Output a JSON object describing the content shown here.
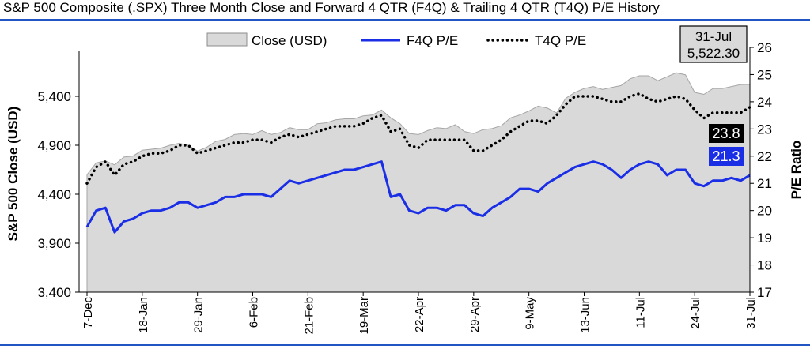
{
  "chart_data": {
    "type": "line",
    "title": "S&P 500 Composite (.SPX) Three Month Close and Forward 4 QTR (F4Q) & Trailing 4 QTR (T4Q) P/E History",
    "ylabel_left": "S&P 500 Close (USD)",
    "ylabel_right": "P/E Ratio",
    "ylim_left": [
      3400,
      5900
    ],
    "ylim_right": [
      17,
      26
    ],
    "yticks_left": [
      "3,400",
      "3,900",
      "4,400",
      "4,900",
      "5,400"
    ],
    "yticks_right": [
      "17",
      "18",
      "19",
      "20",
      "21",
      "22",
      "23",
      "24",
      "25",
      "26"
    ],
    "x_tick_labels": [
      "7-Dec",
      "18-Jan",
      "29-Jan",
      "6-Feb",
      "21-Feb",
      "19-Mar",
      "22-Apr",
      "29-Apr",
      "9-May",
      "13-Jun",
      "11-Jul",
      "24-Jul",
      "31-Jul"
    ],
    "x_tick_index": [
      0,
      6,
      12,
      18,
      24,
      30,
      36,
      42,
      48,
      54,
      60,
      66,
      72
    ],
    "legend_position": "top",
    "series": [
      {
        "name": "Close (USD)",
        "kind": "area",
        "axis": "left",
        "color": "#d9d9d9",
        "values": [
          4600,
          4720,
          4740,
          4700,
          4780,
          4790,
          4850,
          4860,
          4870,
          4900,
          4920,
          4900,
          4840,
          4880,
          4940,
          4960,
          5010,
          5020,
          5010,
          5050,
          5010,
          5030,
          5080,
          5060,
          5060,
          5120,
          5130,
          5160,
          5170,
          5170,
          5200,
          5210,
          5260,
          5180,
          5120,
          5020,
          5010,
          5050,
          5080,
          5070,
          5110,
          5040,
          5020,
          5060,
          5070,
          5100,
          5180,
          5210,
          5250,
          5300,
          5280,
          5230,
          5380,
          5440,
          5480,
          5500,
          5470,
          5490,
          5510,
          5580,
          5610,
          5610,
          5560,
          5600,
          5640,
          5620,
          5440,
          5420,
          5480,
          5480,
          5500,
          5520,
          5522
        ]
      },
      {
        "name": "F4Q P/E",
        "kind": "line",
        "axis": "right",
        "color": "#1a2ee6",
        "values": [
          19.4,
          20.0,
          20.1,
          19.2,
          19.6,
          19.7,
          19.9,
          20.0,
          20.0,
          20.1,
          20.3,
          20.3,
          20.1,
          20.2,
          20.3,
          20.5,
          20.5,
          20.6,
          20.6,
          20.6,
          20.5,
          20.8,
          21.1,
          21.0,
          21.1,
          21.2,
          21.3,
          21.4,
          21.5,
          21.5,
          21.6,
          21.7,
          21.8,
          20.5,
          20.6,
          20.0,
          19.9,
          20.1,
          20.1,
          20.0,
          20.2,
          20.2,
          19.9,
          19.8,
          20.1,
          20.3,
          20.5,
          20.8,
          20.8,
          20.7,
          21.0,
          21.2,
          21.4,
          21.6,
          21.7,
          21.8,
          21.7,
          21.5,
          21.2,
          21.5,
          21.7,
          21.8,
          21.7,
          21.3,
          21.5,
          21.5,
          21.0,
          20.9,
          21.1,
          21.1,
          21.2,
          21.1,
          21.3
        ]
      },
      {
        "name": "T4Q P/E",
        "kind": "dotted",
        "axis": "right",
        "color": "#000000",
        "values": [
          21.0,
          21.6,
          21.8,
          21.3,
          21.7,
          21.8,
          22.0,
          22.1,
          22.1,
          22.2,
          22.4,
          22.4,
          22.1,
          22.2,
          22.3,
          22.4,
          22.5,
          22.5,
          22.6,
          22.6,
          22.5,
          22.7,
          22.8,
          22.7,
          22.8,
          22.9,
          23.0,
          23.1,
          23.1,
          23.1,
          23.2,
          23.4,
          23.5,
          22.9,
          23.0,
          22.4,
          22.3,
          22.6,
          22.6,
          22.6,
          22.6,
          22.6,
          22.2,
          22.2,
          22.4,
          22.6,
          22.9,
          23.1,
          23.3,
          23.3,
          23.2,
          23.5,
          23.9,
          24.2,
          24.2,
          24.2,
          24.1,
          24.0,
          24.0,
          24.2,
          24.3,
          24.1,
          24.0,
          24.1,
          24.2,
          24.1,
          23.7,
          23.4,
          23.6,
          23.6,
          23.6,
          23.6,
          23.8
        ]
      }
    ],
    "end_labels": {
      "t4q": "23.8",
      "f4q": "21.3"
    },
    "callout": {
      "date": "31-Jul",
      "value": "5,522.30"
    },
    "colors": {
      "t4q_label_bg": "#000000",
      "f4q_label_bg": "#1a2ee6",
      "callout_bg": "#d9d9d9",
      "rule": "#2255c4"
    }
  }
}
